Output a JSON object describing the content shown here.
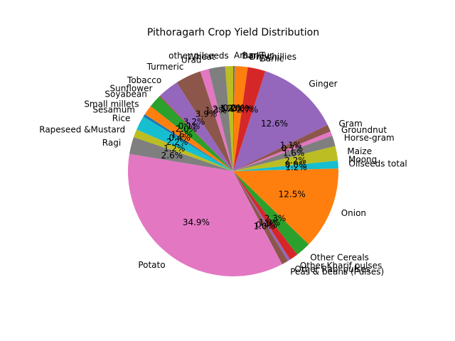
{
  "chart_data": {
    "type": "pie",
    "title": "Pithoragarh Crop Yield Distribution",
    "start_angle_deg": 90,
    "direction": "clockwise",
    "slices": [
      {
        "label": "Arhar/Tur",
        "value": 0.2,
        "pct_label": "0.2%",
        "color": "#1f77b4"
      },
      {
        "label": "Barley",
        "value": 2.0,
        "pct_label": "2.0%",
        "color": "#ff7f0e"
      },
      {
        "label": "Dry chillies",
        "value": 0.0,
        "pct_label": "0.0%",
        "color": "#2ca02c"
      },
      {
        "label": "Garlic",
        "value": 2.7,
        "pct_label": "2.7%",
        "color": "#d62728"
      },
      {
        "label": "Ginger",
        "value": 12.6,
        "pct_label": "12.6%",
        "color": "#9467bd"
      },
      {
        "label": "Gram",
        "value": 1.1,
        "pct_label": "1.1%",
        "color": "#8c564b"
      },
      {
        "label": "Groundnut",
        "value": 0.7,
        "pct_label": "0.7%",
        "color": "#e377c2"
      },
      {
        "label": "Horse-gram",
        "value": 1.6,
        "pct_label": "1.6%",
        "color": "#7f7f7f"
      },
      {
        "label": "Maize",
        "value": 2.2,
        "pct_label": "2.2%",
        "color": "#bcbd22"
      },
      {
        "label": "Moong",
        "value": 0.0,
        "pct_label": "0.0%",
        "color": "#17becf"
      },
      {
        "label": "Oilseeds total",
        "value": 1.2,
        "pct_label": "1.2%",
        "color": "#17becf"
      },
      {
        "label": "Onion",
        "value": 12.5,
        "pct_label": "12.5%",
        "color": "#ff7f0e"
      },
      {
        "label": "Other Cereals",
        "value": 2.3,
        "pct_label": "2.3%",
        "color": "#2ca02c"
      },
      {
        "label": "Other Kharif pulses",
        "value": 1.3,
        "pct_label": "1.3%",
        "color": "#d62728"
      },
      {
        "label": "Other Rabi pulses",
        "value": 0.4,
        "pct_label": "0.4%",
        "color": "#9467bd"
      },
      {
        "label": "Peas & beans (Pulses)",
        "value": 1.0,
        "pct_label": "1.0%",
        "color": "#8c564b"
      },
      {
        "label": "Potato",
        "value": 34.9,
        "pct_label": "34.9%",
        "color": "#e377c2"
      },
      {
        "label": "Ragi",
        "value": 2.6,
        "pct_label": "2.6%",
        "color": "#7f7f7f"
      },
      {
        "label": "Rapeseed &Mustard",
        "value": 1.2,
        "pct_label": "1.2%",
        "color": "#bcbd22"
      },
      {
        "label": "Rice",
        "value": 2.2,
        "pct_label": "2.2%",
        "color": "#17becf"
      },
      {
        "label": "Sesamum",
        "value": 0.4,
        "pct_label": "0.4%",
        "color": "#1f77b4"
      },
      {
        "label": "Small millets",
        "value": 1.5,
        "pct_label": "1.5%",
        "color": "#ff7f0e"
      },
      {
        "label": "Soyabean",
        "value": 2.0,
        "pct_label": "2.0%",
        "color": "#2ca02c"
      },
      {
        "label": "Sunflower",
        "value": 0.1,
        "pct_label": "0.1%",
        "color": "#d62728"
      },
      {
        "label": "Tobacco",
        "value": 3.2,
        "pct_label": "3.2%",
        "color": "#9467bd"
      },
      {
        "label": "Turmeric",
        "value": 3.9,
        "pct_label": "3.9%",
        "color": "#8c564b"
      },
      {
        "label": "Urad",
        "value": 1.3,
        "pct_label": "1.3%",
        "color": "#e377c2"
      },
      {
        "label": "Wheat",
        "value": 2.5,
        "pct_label": "2.5%",
        "color": "#7f7f7f"
      },
      {
        "label": "other oilseeds",
        "value": 1.2,
        "pct_label": "1.2%",
        "color": "#bcbd22"
      }
    ]
  }
}
